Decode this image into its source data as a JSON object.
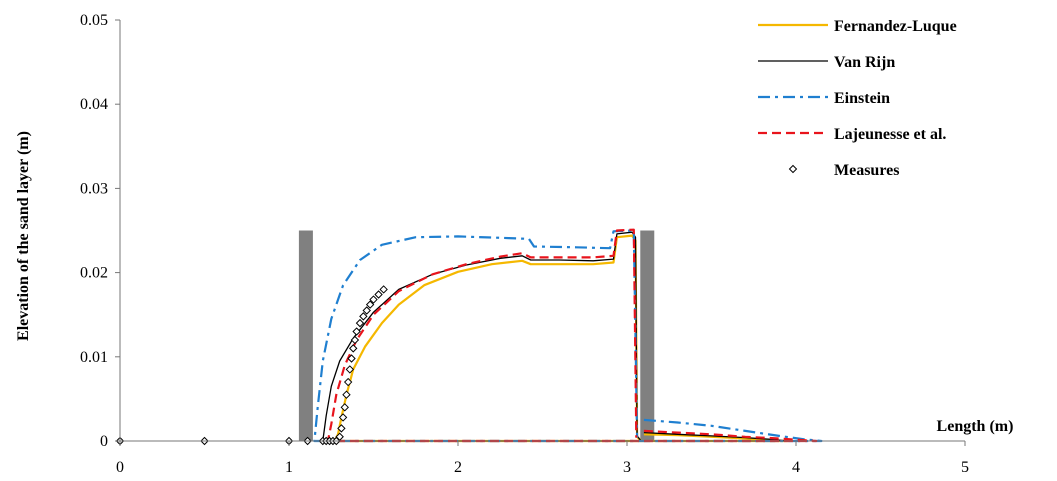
{
  "chart_data": {
    "type": "line",
    "title": "",
    "xlabel": "Length (m)",
    "ylabel": "Elevation of the sand layer (m)",
    "xlim": [
      0,
      5
    ],
    "ylim": [
      0,
      0.05
    ],
    "x_ticks": [
      "0",
      "1",
      "2",
      "3",
      "4",
      "5"
    ],
    "y_ticks": [
      "0",
      "0.01",
      "0.02",
      "0.03",
      "0.04",
      "0.05"
    ],
    "x_tick_values": [
      0,
      1,
      2,
      3,
      4,
      5
    ],
    "y_tick_values": [
      0,
      0.01,
      0.02,
      0.03,
      0.04,
      0.05
    ],
    "grid": false,
    "legend_position": "top-right",
    "walls": [
      {
        "x": 1.1,
        "y_top": 0.025,
        "color": "#808080"
      },
      {
        "x": 3.12,
        "y_top": 0.025,
        "color": "#808080"
      }
    ],
    "series": [
      {
        "name": "Fernandez-Luque",
        "color": "#f5b800",
        "dash": "solid",
        "points": [
          [
            3.1,
            0.0008
          ],
          [
            3.3,
            0.0007
          ],
          [
            3.5,
            0.0005
          ],
          [
            3.7,
            0.0003
          ],
          [
            3.85,
            0.0001
          ],
          [
            3.95,
            0.0
          ],
          [
            1.27,
            0.0
          ],
          [
            1.29,
            0.0008
          ],
          [
            1.31,
            0.0028
          ],
          [
            1.34,
            0.0055
          ],
          [
            1.38,
            0.0085
          ],
          [
            1.45,
            0.0112
          ],
          [
            1.55,
            0.014
          ],
          [
            1.65,
            0.0162
          ],
          [
            1.8,
            0.0185
          ],
          [
            2.0,
            0.0201
          ],
          [
            2.2,
            0.021
          ],
          [
            2.38,
            0.0214
          ],
          [
            2.43,
            0.021
          ],
          [
            2.6,
            0.021
          ],
          [
            2.8,
            0.021
          ],
          [
            2.92,
            0.0212
          ],
          [
            2.94,
            0.0242
          ],
          [
            3.03,
            0.0244
          ],
          [
            3.05,
            0.0238
          ],
          [
            3.06,
            0.0005
          ],
          [
            3.08,
            0.0001
          ]
        ]
      },
      {
        "name": "Van Rijn",
        "color": "#000000",
        "dash": "solid",
        "points": [
          [
            3.1,
            0.001
          ],
          [
            3.3,
            0.0008
          ],
          [
            3.5,
            0.0006
          ],
          [
            3.7,
            0.0004
          ],
          [
            3.85,
            0.0002
          ],
          [
            3.95,
            0.0
          ],
          [
            1.2,
            0.0
          ],
          [
            1.22,
            0.003
          ],
          [
            1.25,
            0.0065
          ],
          [
            1.3,
            0.0095
          ],
          [
            1.38,
            0.0122
          ],
          [
            1.5,
            0.0153
          ],
          [
            1.65,
            0.018
          ],
          [
            1.85,
            0.0198
          ],
          [
            2.05,
            0.0209
          ],
          [
            2.25,
            0.0217
          ],
          [
            2.38,
            0.022
          ],
          [
            2.43,
            0.0215
          ],
          [
            2.6,
            0.0215
          ],
          [
            2.8,
            0.0214
          ],
          [
            2.92,
            0.0216
          ],
          [
            2.94,
            0.0246
          ],
          [
            3.03,
            0.0248
          ],
          [
            3.05,
            0.0242
          ],
          [
            3.06,
            0.0006
          ],
          [
            3.08,
            0.0001
          ]
        ]
      },
      {
        "name": "Einstein",
        "color": "#1f7fd0",
        "dash": "dashdot",
        "points": [
          [
            3.1,
            0.0025
          ],
          [
            3.3,
            0.0022
          ],
          [
            3.5,
            0.0018
          ],
          [
            3.7,
            0.0012
          ],
          [
            3.9,
            0.0006
          ],
          [
            4.05,
            0.0002
          ],
          [
            4.15,
            0.0
          ],
          [
            1.15,
            0.0
          ],
          [
            1.17,
            0.004
          ],
          [
            1.2,
            0.0095
          ],
          [
            1.25,
            0.0145
          ],
          [
            1.32,
            0.0185
          ],
          [
            1.42,
            0.0215
          ],
          [
            1.55,
            0.0233
          ],
          [
            1.75,
            0.0242
          ],
          [
            2.0,
            0.0243
          ],
          [
            2.3,
            0.0241
          ],
          [
            2.42,
            0.024
          ],
          [
            2.45,
            0.0231
          ],
          [
            2.7,
            0.023
          ],
          [
            2.9,
            0.0229
          ],
          [
            2.92,
            0.0249
          ],
          [
            3.04,
            0.025
          ],
          [
            3.06,
            0.0004
          ]
        ]
      },
      {
        "name": "Lajeunesse et al.",
        "color": "#e8141c",
        "dash": "dashed",
        "points": [
          [
            3.1,
            0.0012
          ],
          [
            3.3,
            0.001
          ],
          [
            3.5,
            0.0008
          ],
          [
            3.7,
            0.0005
          ],
          [
            3.9,
            0.0003
          ],
          [
            4.05,
            0.0001
          ],
          [
            4.12,
            0.0
          ],
          [
            1.23,
            0.0
          ],
          [
            1.25,
            0.002
          ],
          [
            1.28,
            0.0055
          ],
          [
            1.33,
            0.009
          ],
          [
            1.4,
            0.012
          ],
          [
            1.5,
            0.015
          ],
          [
            1.65,
            0.0178
          ],
          [
            1.85,
            0.0198
          ],
          [
            2.05,
            0.021
          ],
          [
            2.25,
            0.0219
          ],
          [
            2.38,
            0.0223
          ],
          [
            2.43,
            0.0218
          ],
          [
            2.6,
            0.0218
          ],
          [
            2.8,
            0.0218
          ],
          [
            2.92,
            0.022
          ],
          [
            2.94,
            0.025
          ],
          [
            3.04,
            0.0251
          ],
          [
            3.055,
            0.0004
          ]
        ]
      },
      {
        "name": "Measures",
        "color": "#000000",
        "marker": "diamond",
        "points": [
          [
            0,
            0
          ],
          [
            0.5,
            0
          ],
          [
            1.0,
            0
          ],
          [
            1.11,
            0
          ],
          [
            1.2,
            0
          ],
          [
            1.22,
            0
          ],
          [
            1.24,
            0
          ],
          [
            1.26,
            0
          ],
          [
            1.28,
            0
          ],
          [
            1.3,
            0.0005
          ],
          [
            1.31,
            0.0015
          ],
          [
            1.32,
            0.0028
          ],
          [
            1.33,
            0.004
          ],
          [
            1.34,
            0.0055
          ],
          [
            1.35,
            0.007
          ],
          [
            1.36,
            0.0085
          ],
          [
            1.37,
            0.0098
          ],
          [
            1.38,
            0.011
          ],
          [
            1.39,
            0.012
          ],
          [
            1.4,
            0.013
          ],
          [
            1.42,
            0.014
          ],
          [
            1.44,
            0.0148
          ],
          [
            1.46,
            0.0155
          ],
          [
            1.48,
            0.0162
          ],
          [
            1.5,
            0.0168
          ],
          [
            1.53,
            0.0174
          ],
          [
            1.56,
            0.018
          ]
        ]
      }
    ]
  }
}
